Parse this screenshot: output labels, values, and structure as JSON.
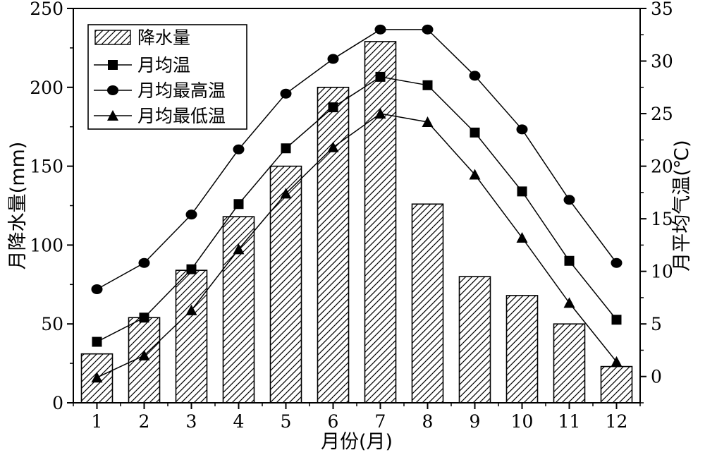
{
  "chart_data": {
    "type": "bar",
    "categories": [
      "1",
      "2",
      "3",
      "4",
      "5",
      "6",
      "7",
      "8",
      "9",
      "10",
      "11",
      "12"
    ],
    "xlabel": "月份(月)",
    "ylabel_left": "月降水量(mm)",
    "ylabel_right": "月平均气温(℃)",
    "ylim_left": [
      0,
      250
    ],
    "ylim_right": [
      -2.5,
      35
    ],
    "yticks_left": [
      "0",
      "50",
      "100",
      "150",
      "200",
      "250"
    ],
    "yticks_right": [
      "0",
      "5",
      "10",
      "15",
      "20",
      "25",
      "30",
      "35"
    ],
    "grid": false,
    "legend_position": "top-left",
    "series": [
      {
        "name": "降水量",
        "axis": "left",
        "kind": "bar",
        "pattern": "hatch",
        "values": [
          31,
          54,
          84,
          118,
          150,
          200,
          229,
          126,
          80,
          68,
          50,
          23
        ]
      },
      {
        "name": "月均温",
        "axis": "right",
        "kind": "line",
        "marker": "square",
        "values": [
          3.3,
          5.6,
          10.2,
          16.4,
          21.7,
          25.6,
          28.5,
          27.7,
          23.2,
          17.6,
          11.0,
          5.4
        ]
      },
      {
        "name": "月均最高温",
        "axis": "right",
        "kind": "line",
        "marker": "circle",
        "values": [
          8.3,
          10.8,
          15.4,
          21.6,
          26.9,
          30.2,
          33.0,
          33.0,
          28.6,
          23.5,
          16.8,
          10.8
        ]
      },
      {
        "name": "月均最低温",
        "axis": "right",
        "kind": "line",
        "marker": "triangle",
        "values": [
          -0.1,
          2.0,
          6.3,
          12.1,
          17.4,
          21.8,
          25.0,
          24.2,
          19.2,
          13.2,
          7.0,
          1.4
        ]
      }
    ]
  }
}
